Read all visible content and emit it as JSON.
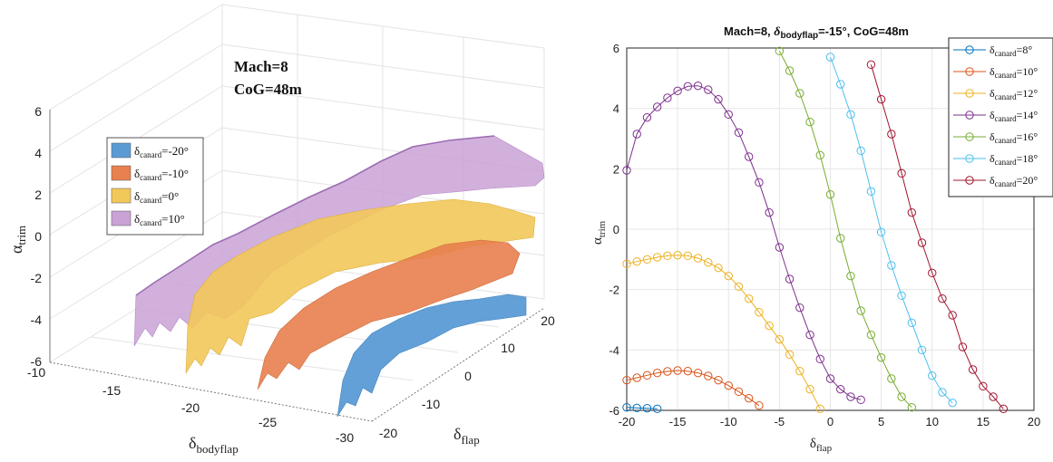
{
  "chart_data": [
    {
      "type": "surface",
      "annotation_lines": [
        "Mach=8",
        "CoG=48m"
      ],
      "zlabel": {
        "base": "α",
        "sub": "trim"
      },
      "xlabel": {
        "base": "δ",
        "sub": "bodyflap"
      },
      "ylabel": {
        "base": "δ",
        "sub": "flap"
      },
      "z_ticks": [
        "6",
        "4",
        "2",
        "0",
        "-2",
        "-4",
        "-6"
      ],
      "x_ticks": [
        "-10",
        "-15",
        "-20",
        "-25",
        "-30"
      ],
      "y_ticks": [
        "-20",
        "-10",
        "0",
        "10",
        "20"
      ],
      "xlim": [
        -30,
        -10
      ],
      "ylim": [
        -20,
        20
      ],
      "zlim": [
        -6,
        6
      ],
      "legend_placement": "center-left",
      "grid": true,
      "series": [
        {
          "legend_base": "δ",
          "legend_sub": "canard",
          "legend_val": "=-20°",
          "color": "#5b9bd5"
        },
        {
          "legend_base": "δ",
          "legend_sub": "canard",
          "legend_val": "=-10°",
          "color": "#e8804f"
        },
        {
          "legend_base": "δ",
          "legend_sub": "canard",
          "legend_val": "=0°",
          "color": "#f2c85a"
        },
        {
          "legend_base": "δ",
          "legend_sub": "canard",
          "legend_val": "=10°",
          "color": "#caa2d6"
        }
      ]
    },
    {
      "type": "line",
      "title": {
        "a": "Mach=8, ",
        "b": "δ",
        "sub": "bodyflap",
        "c": "=-15°, CoG=48m"
      },
      "xlabel": {
        "base": "δ",
        "sub": "flap"
      },
      "ylabel": {
        "base": "α",
        "sub": "trim"
      },
      "xlim": [
        -20,
        20
      ],
      "ylim": [
        -6,
        6
      ],
      "x_ticks": [
        -20,
        -15,
        -10,
        -5,
        0,
        5,
        10,
        15,
        20
      ],
      "y_ticks": [
        -6,
        -4,
        -2,
        0,
        2,
        4,
        6
      ],
      "grid": true,
      "legend_placement": "top-right",
      "series": [
        {
          "legend_base": "δ",
          "legend_sub": "canard",
          "legend_val": "=8°",
          "color": "#0072bd",
          "x": [
            -20,
            -19,
            -18,
            -17
          ],
          "y": [
            -5.9,
            -5.92,
            -5.93,
            -5.95
          ]
        },
        {
          "legend_base": "δ",
          "legend_sub": "canard",
          "legend_val": "=10°",
          "color": "#d95319",
          "x": [
            -20,
            -19,
            -18,
            -17,
            -16,
            -15,
            -14,
            -13,
            -12,
            -11,
            -10,
            -9,
            -8,
            -7
          ],
          "y": [
            -5.0,
            -4.92,
            -4.84,
            -4.76,
            -4.71,
            -4.68,
            -4.7,
            -4.76,
            -4.86,
            -5.0,
            -5.18,
            -5.38,
            -5.6,
            -5.84
          ]
        },
        {
          "legend_base": "δ",
          "legend_sub": "canard",
          "legend_val": "=12°",
          "color": "#edb120",
          "x": [
            -20,
            -19,
            -18,
            -17,
            -16,
            -15,
            -14,
            -13,
            -12,
            -11,
            -10,
            -9,
            -8,
            -7,
            -6,
            -5,
            -4,
            -3,
            -2,
            -1
          ],
          "y": [
            -1.15,
            -1.07,
            -1.0,
            -0.93,
            -0.88,
            -0.86,
            -0.88,
            -0.96,
            -1.1,
            -1.28,
            -1.55,
            -1.9,
            -2.3,
            -2.75,
            -3.2,
            -3.65,
            -4.15,
            -4.7,
            -5.3,
            -5.95
          ]
        },
        {
          "legend_base": "δ",
          "legend_sub": "canard",
          "legend_val": "=14°",
          "color": "#7e2f8e",
          "x": [
            -20,
            -19,
            -18,
            -17,
            -16,
            -15,
            -14,
            -13,
            -12,
            -11,
            -10,
            -9,
            -8,
            -7,
            -6,
            -5,
            -4,
            -3,
            -2,
            -1,
            0,
            1,
            2,
            3
          ],
          "y": [
            1.95,
            3.15,
            3.7,
            4.05,
            4.35,
            4.58,
            4.73,
            4.75,
            4.62,
            4.3,
            3.8,
            3.2,
            2.4,
            1.55,
            0.55,
            -0.6,
            -1.65,
            -2.6,
            -3.5,
            -4.3,
            -4.95,
            -5.3,
            -5.55,
            -5.65
          ]
        },
        {
          "legend_base": "δ",
          "legend_sub": "canard",
          "legend_val": "=16°",
          "color": "#77ac30",
          "x": [
            -5,
            -4,
            -3,
            -2,
            -1,
            0,
            1,
            2,
            3,
            4,
            5,
            6,
            7,
            8
          ],
          "y": [
            5.9,
            5.25,
            4.5,
            3.55,
            2.45,
            1.15,
            -0.3,
            -1.55,
            -2.7,
            -3.5,
            -4.25,
            -4.95,
            -5.55,
            -5.9
          ]
        },
        {
          "legend_base": "δ",
          "legend_sub": "canard",
          "legend_val": "=18°",
          "color": "#4dbeee",
          "x": [
            0,
            1,
            2,
            3,
            4,
            5,
            6,
            7,
            8,
            9,
            10,
            11,
            12
          ],
          "y": [
            5.7,
            4.8,
            3.8,
            2.6,
            1.25,
            -0.1,
            -1.2,
            -2.2,
            -3.1,
            -4.0,
            -4.85,
            -5.4,
            -5.75
          ]
        },
        {
          "legend_base": "δ",
          "legend_sub": "canard",
          "legend_val": "=20°",
          "color": "#a2142f",
          "x": [
            4,
            5,
            6,
            7,
            8,
            9,
            10,
            11,
            12,
            13,
            14,
            15,
            16,
            17
          ],
          "y": [
            5.45,
            4.3,
            3.15,
            1.85,
            0.55,
            -0.45,
            -1.45,
            -2.3,
            -2.85,
            -3.9,
            -4.65,
            -5.2,
            -5.55,
            -5.95
          ]
        }
      ]
    }
  ]
}
